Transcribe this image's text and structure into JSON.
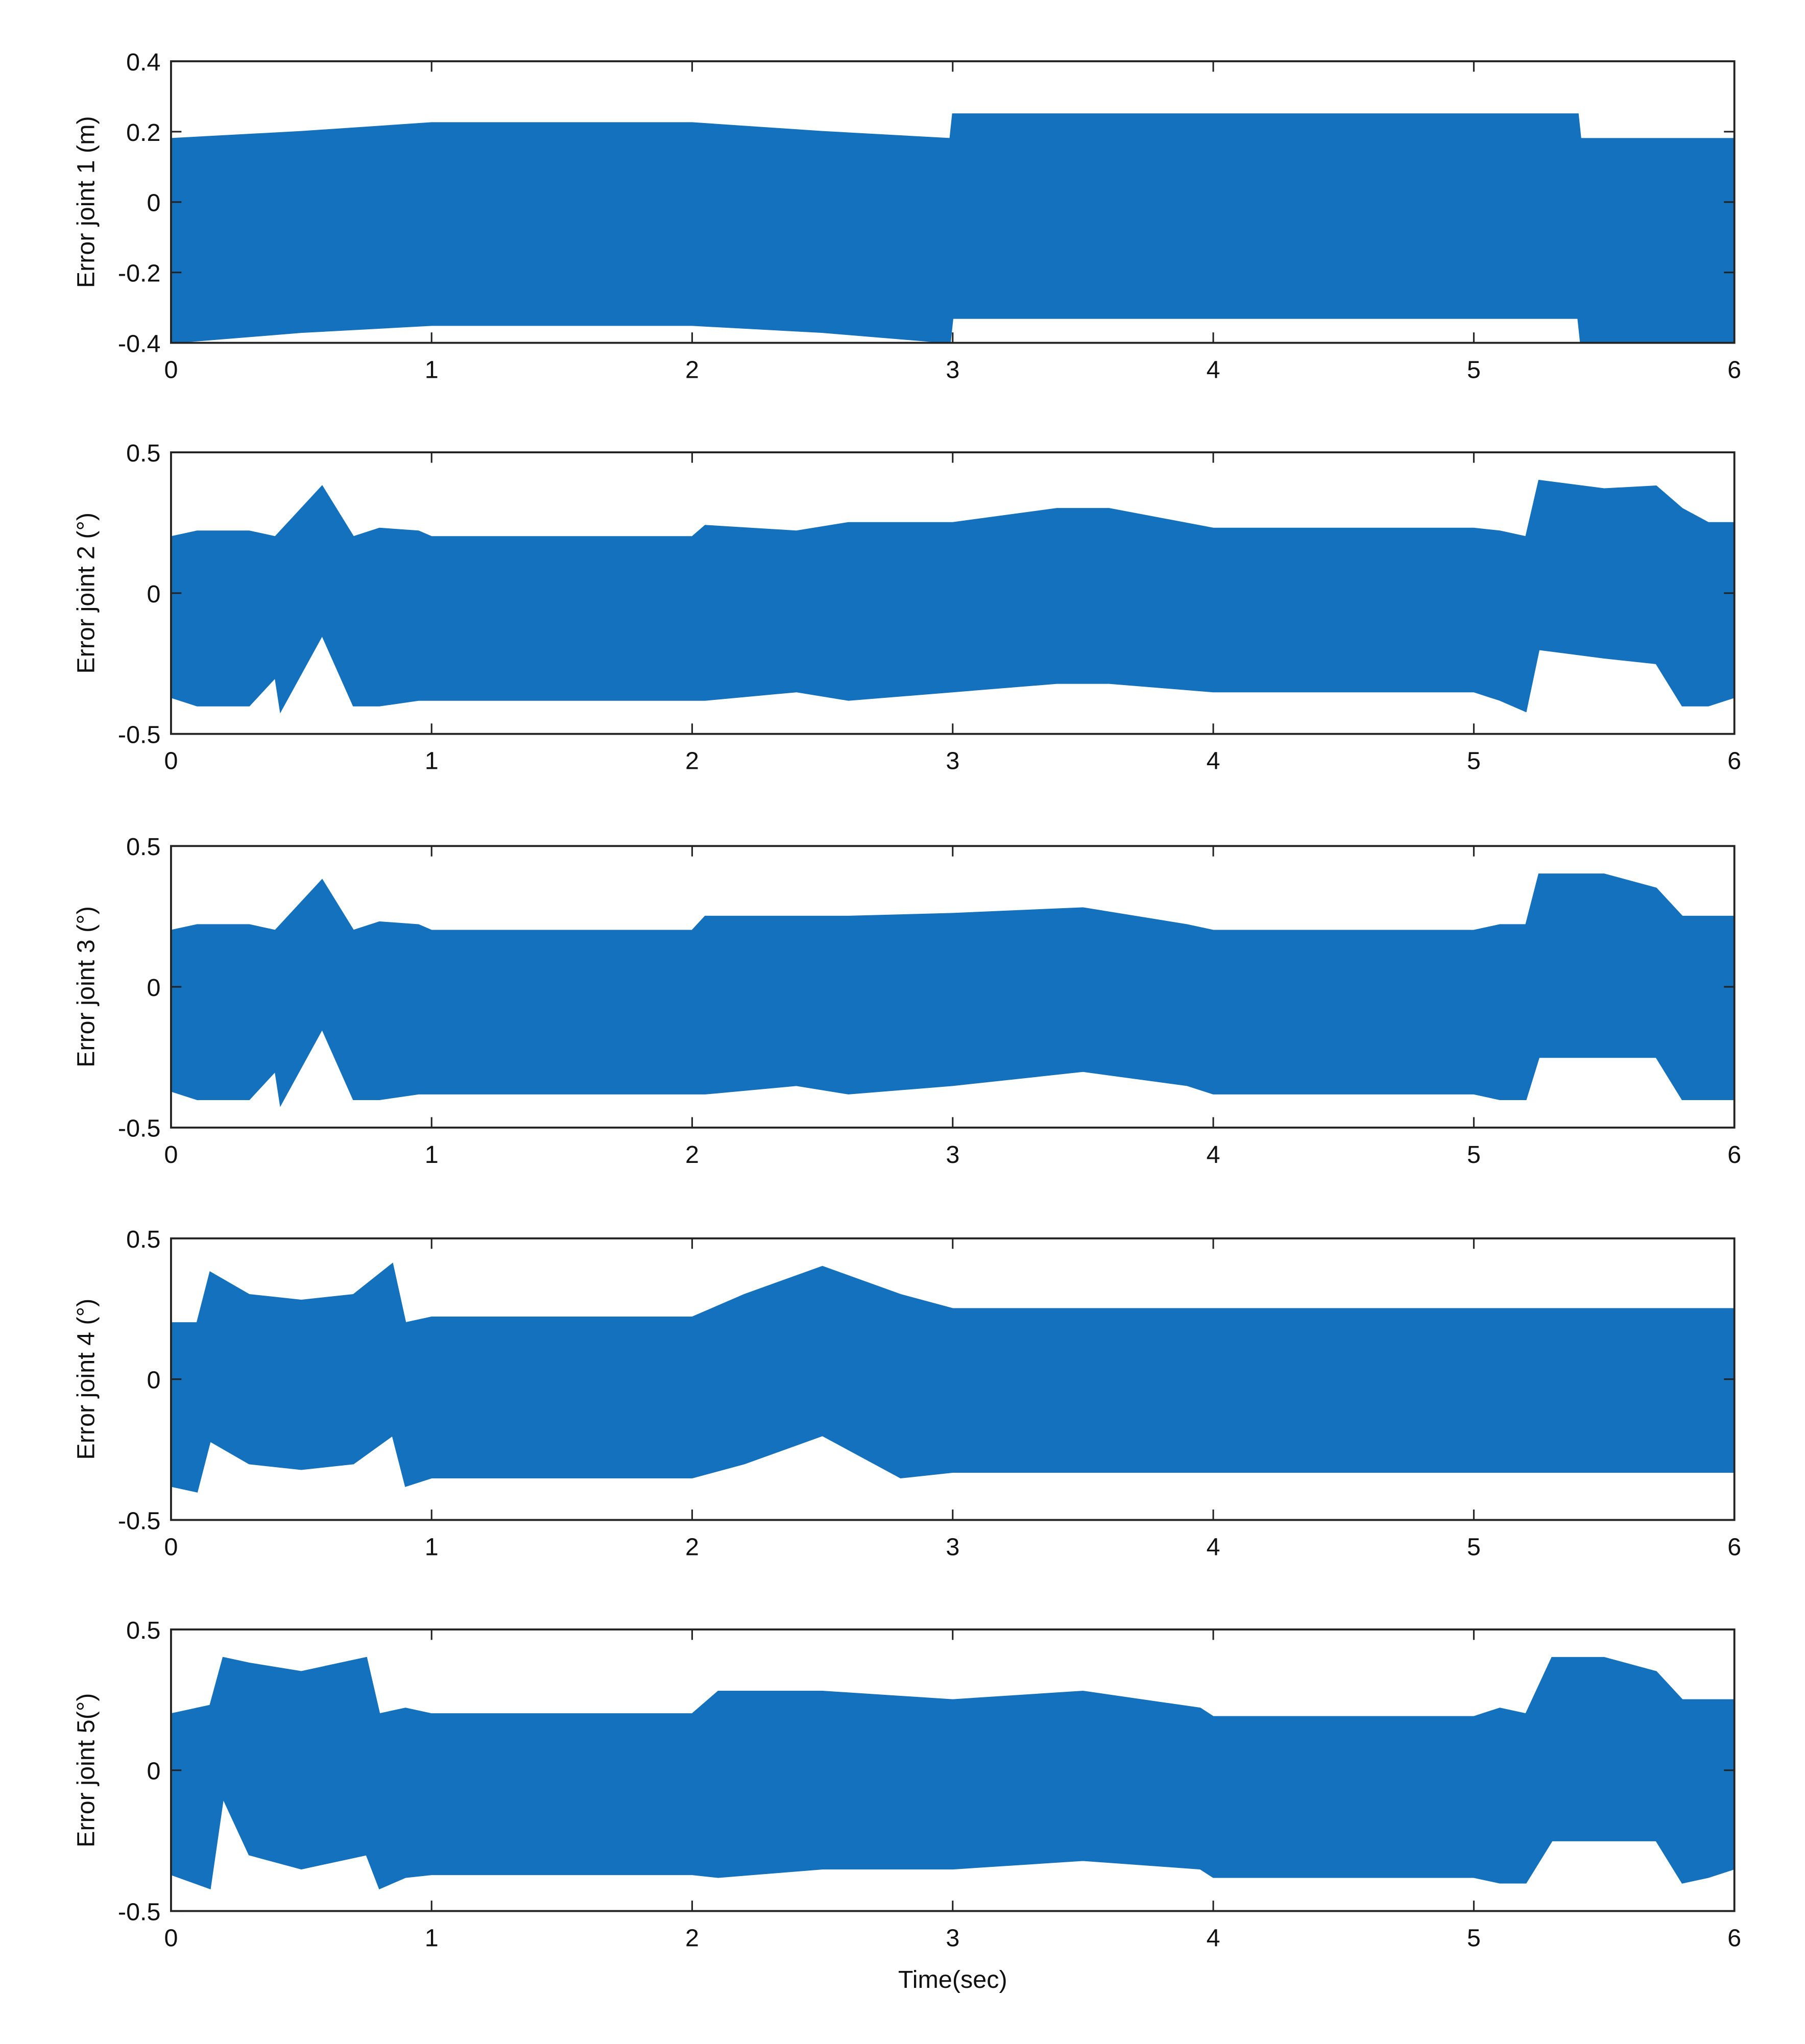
{
  "chart_data": [
    {
      "type": "band",
      "ylabel": "Error joint 1 (m)",
      "color": "#1471bd",
      "xlim": [
        0,
        6
      ],
      "xticks": [
        0,
        1,
        2,
        3,
        4,
        5,
        6
      ],
      "ylim": [
        -0.4,
        0.4
      ],
      "yticks": [
        -0.4,
        -0.2,
        0,
        0.2,
        0.4
      ],
      "x": [
        0,
        0.5,
        1,
        1.5,
        2,
        2.5,
        2.99,
        3,
        5.4,
        5.41,
        6
      ],
      "upper": [
        0.18,
        0.2,
        0.225,
        0.225,
        0.225,
        0.2,
        0.18,
        0.25,
        0.25,
        0.18,
        0.18
      ],
      "lower": [
        -0.4,
        -0.37,
        -0.35,
        -0.35,
        -0.35,
        -0.37,
        -0.4,
        -0.33,
        -0.33,
        -0.4,
        -0.4
      ]
    },
    {
      "type": "band",
      "ylabel": "Error joint 2 (°)",
      "color": "#1471bd",
      "xlim": [
        0,
        6
      ],
      "xticks": [
        0,
        1,
        2,
        3,
        4,
        5,
        6
      ],
      "ylim": [
        -0.5,
        0.5
      ],
      "yticks": [
        -0.5,
        0,
        0.5
      ],
      "x": [
        0,
        0.1,
        0.3,
        0.4,
        0.42,
        0.58,
        0.7,
        0.8,
        0.95,
        1,
        2,
        2.05,
        2.4,
        2.6,
        3,
        3.4,
        3.6,
        4,
        5,
        5.1,
        5.2,
        5.25,
        5.5,
        5.7,
        5.8,
        5.9,
        6
      ],
      "upper": [
        0.2,
        0.22,
        0.22,
        0.2,
        0.22,
        0.38,
        0.2,
        0.23,
        0.22,
        0.2,
        0.2,
        0.24,
        0.22,
        0.25,
        0.25,
        0.3,
        0.3,
        0.23,
        0.23,
        0.22,
        0.2,
        0.4,
        0.37,
        0.38,
        0.3,
        0.25,
        0.25
      ],
      "lower": [
        -0.37,
        -0.4,
        -0.4,
        -0.3,
        -0.42,
        -0.15,
        -0.4,
        -0.4,
        -0.38,
        -0.38,
        -0.38,
        -0.38,
        -0.35,
        -0.38,
        -0.35,
        -0.32,
        -0.32,
        -0.35,
        -0.35,
        -0.38,
        -0.42,
        -0.2,
        -0.23,
        -0.25,
        -0.4,
        -0.4,
        -0.37
      ]
    },
    {
      "type": "band",
      "ylabel": "Error joint 3 (°)",
      "color": "#1471bd",
      "xlim": [
        0,
        6
      ],
      "xticks": [
        0,
        1,
        2,
        3,
        4,
        5,
        6
      ],
      "ylim": [
        -0.5,
        0.5
      ],
      "yticks": [
        -0.5,
        0,
        0.5
      ],
      "x": [
        0,
        0.1,
        0.3,
        0.4,
        0.42,
        0.58,
        0.7,
        0.8,
        0.95,
        1,
        2,
        2.05,
        2.4,
        2.6,
        3,
        3.5,
        3.9,
        4,
        5,
        5.1,
        5.2,
        5.25,
        5.5,
        5.7,
        5.8,
        5.9,
        6
      ],
      "upper": [
        0.2,
        0.22,
        0.22,
        0.2,
        0.22,
        0.38,
        0.2,
        0.23,
        0.22,
        0.2,
        0.2,
        0.25,
        0.25,
        0.25,
        0.26,
        0.28,
        0.22,
        0.2,
        0.2,
        0.22,
        0.22,
        0.4,
        0.4,
        0.35,
        0.25,
        0.25,
        0.25
      ],
      "lower": [
        -0.37,
        -0.4,
        -0.4,
        -0.3,
        -0.42,
        -0.15,
        -0.4,
        -0.4,
        -0.38,
        -0.38,
        -0.38,
        -0.38,
        -0.35,
        -0.38,
        -0.35,
        -0.3,
        -0.35,
        -0.38,
        -0.38,
        -0.4,
        -0.4,
        -0.25,
        -0.25,
        -0.25,
        -0.4,
        -0.4,
        -0.4
      ]
    },
    {
      "type": "band",
      "ylabel": "Error joint 4 (°)",
      "color": "#1471bd",
      "xlim": [
        0,
        6
      ],
      "xticks": [
        0,
        1,
        2,
        3,
        4,
        5,
        6
      ],
      "ylim": [
        -0.5,
        0.5
      ],
      "yticks": [
        -0.5,
        0,
        0.5
      ],
      "x": [
        0,
        0.1,
        0.15,
        0.3,
        0.5,
        0.7,
        0.85,
        0.9,
        1,
        2,
        2.2,
        2.5,
        2.8,
        3,
        6
      ],
      "upper": [
        0.2,
        0.2,
        0.38,
        0.3,
        0.28,
        0.3,
        0.41,
        0.2,
        0.22,
        0.22,
        0.3,
        0.4,
        0.3,
        0.25,
        0.25
      ],
      "lower": [
        -0.38,
        -0.4,
        -0.22,
        -0.3,
        -0.32,
        -0.3,
        -0.2,
        -0.38,
        -0.35,
        -0.35,
        -0.3,
        -0.2,
        -0.35,
        -0.33,
        -0.33
      ]
    },
    {
      "type": "band",
      "ylabel": "Error joint 5(°)",
      "xlabel": "Time(sec)",
      "color": "#1471bd",
      "xlim": [
        0,
        6
      ],
      "xticks": [
        0,
        1,
        2,
        3,
        4,
        5,
        6
      ],
      "ylim": [
        -0.5,
        0.5
      ],
      "yticks": [
        -0.5,
        0,
        0.5
      ],
      "x": [
        0,
        0.15,
        0.2,
        0.3,
        0.5,
        0.75,
        0.8,
        0.9,
        1,
        2,
        2.1,
        2.5,
        3,
        3.5,
        3.95,
        4,
        5,
        5.1,
        5.2,
        5.3,
        5.5,
        5.7,
        5.8,
        5.9,
        6
      ],
      "upper": [
        0.2,
        0.23,
        0.4,
        0.38,
        0.35,
        0.4,
        0.2,
        0.22,
        0.2,
        0.2,
        0.28,
        0.28,
        0.25,
        0.28,
        0.22,
        0.19,
        0.19,
        0.22,
        0.2,
        0.4,
        0.4,
        0.35,
        0.25,
        0.25,
        0.25
      ],
      "lower": [
        -0.37,
        -0.42,
        -0.1,
        -0.3,
        -0.35,
        -0.3,
        -0.42,
        -0.38,
        -0.37,
        -0.37,
        -0.38,
        -0.35,
        -0.35,
        -0.32,
        -0.35,
        -0.38,
        -0.38,
        -0.4,
        -0.4,
        -0.25,
        -0.25,
        -0.25,
        -0.4,
        -0.38,
        -0.35
      ]
    }
  ]
}
